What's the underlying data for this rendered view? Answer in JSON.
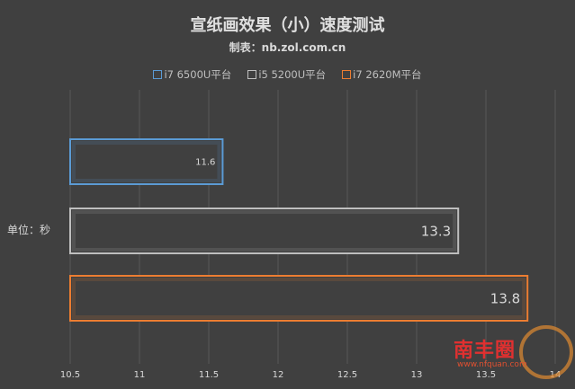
{
  "chart_data": {
    "type": "bar",
    "orientation": "horizontal",
    "title": "宣纸画效果（小）速度测试",
    "subtitle": "制表：nb.zol.com.cn",
    "ylabel": "单位：秒",
    "xlim": [
      10.5,
      14
    ],
    "xticks": [
      "10.5",
      "11",
      "11.5",
      "12",
      "12.5",
      "13",
      "13.5",
      "14"
    ],
    "grid": true,
    "legend_position": "top",
    "series": [
      {
        "name": "i7 6500U平台",
        "value": 11.6,
        "label": "11.6",
        "color": "#5b9bd5"
      },
      {
        "name": "i5 5200U平台",
        "value": 13.3,
        "label": "13.3",
        "color": "#bfbfbf"
      },
      {
        "name": "i7 2620M平台",
        "value": 13.8,
        "label": "13.8",
        "color": "#ed7d31"
      }
    ]
  },
  "watermark": {
    "text": "南丰圈",
    "url": "www.nfquan.com"
  }
}
